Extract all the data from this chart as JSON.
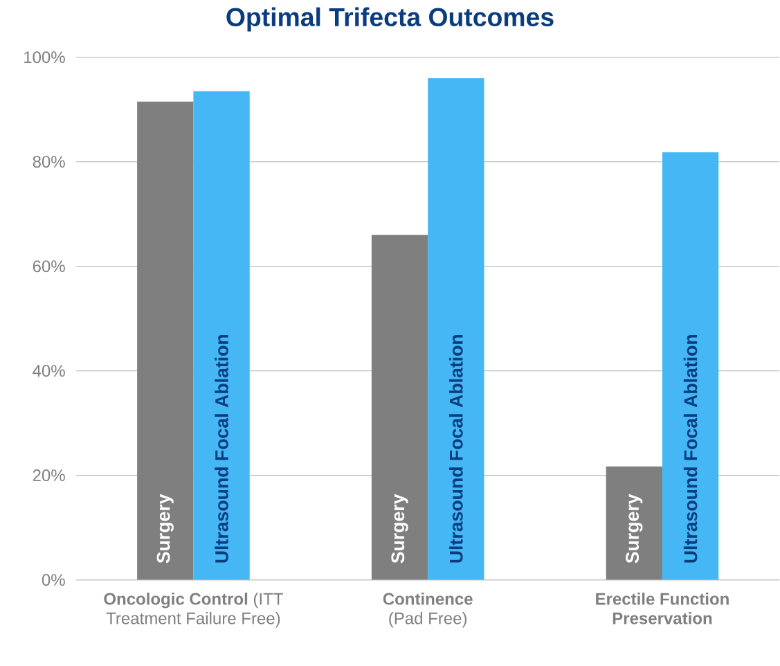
{
  "chart_data": {
    "type": "bar",
    "title": "Optimal Trifecta Outcomes",
    "categories": [
      "**Oncologic Control** (ITT Treatment Failure Free)",
      "**Continence** (Pad Free)",
      "**Erectile Function Preservation**"
    ],
    "series": [
      {
        "name": "Surgery",
        "color": "#7f7f7f",
        "values": [
          91.5,
          66,
          21.7
        ]
      },
      {
        "name": "Ultrasound Focal Ablation",
        "color": "#44b7f4",
        "values": [
          93.5,
          96,
          81.8
        ]
      }
    ],
    "ylim": [
      0,
      100
    ],
    "yticks": [
      {
        "value": 0,
        "label": "0%"
      },
      {
        "value": 20,
        "label": "20%"
      },
      {
        "value": 40,
        "label": "40%"
      },
      {
        "value": 60,
        "label": "60%"
      },
      {
        "value": 80,
        "label": "80%"
      },
      {
        "value": 100,
        "label": "100%"
      }
    ],
    "grid": "y",
    "legend": false
  }
}
